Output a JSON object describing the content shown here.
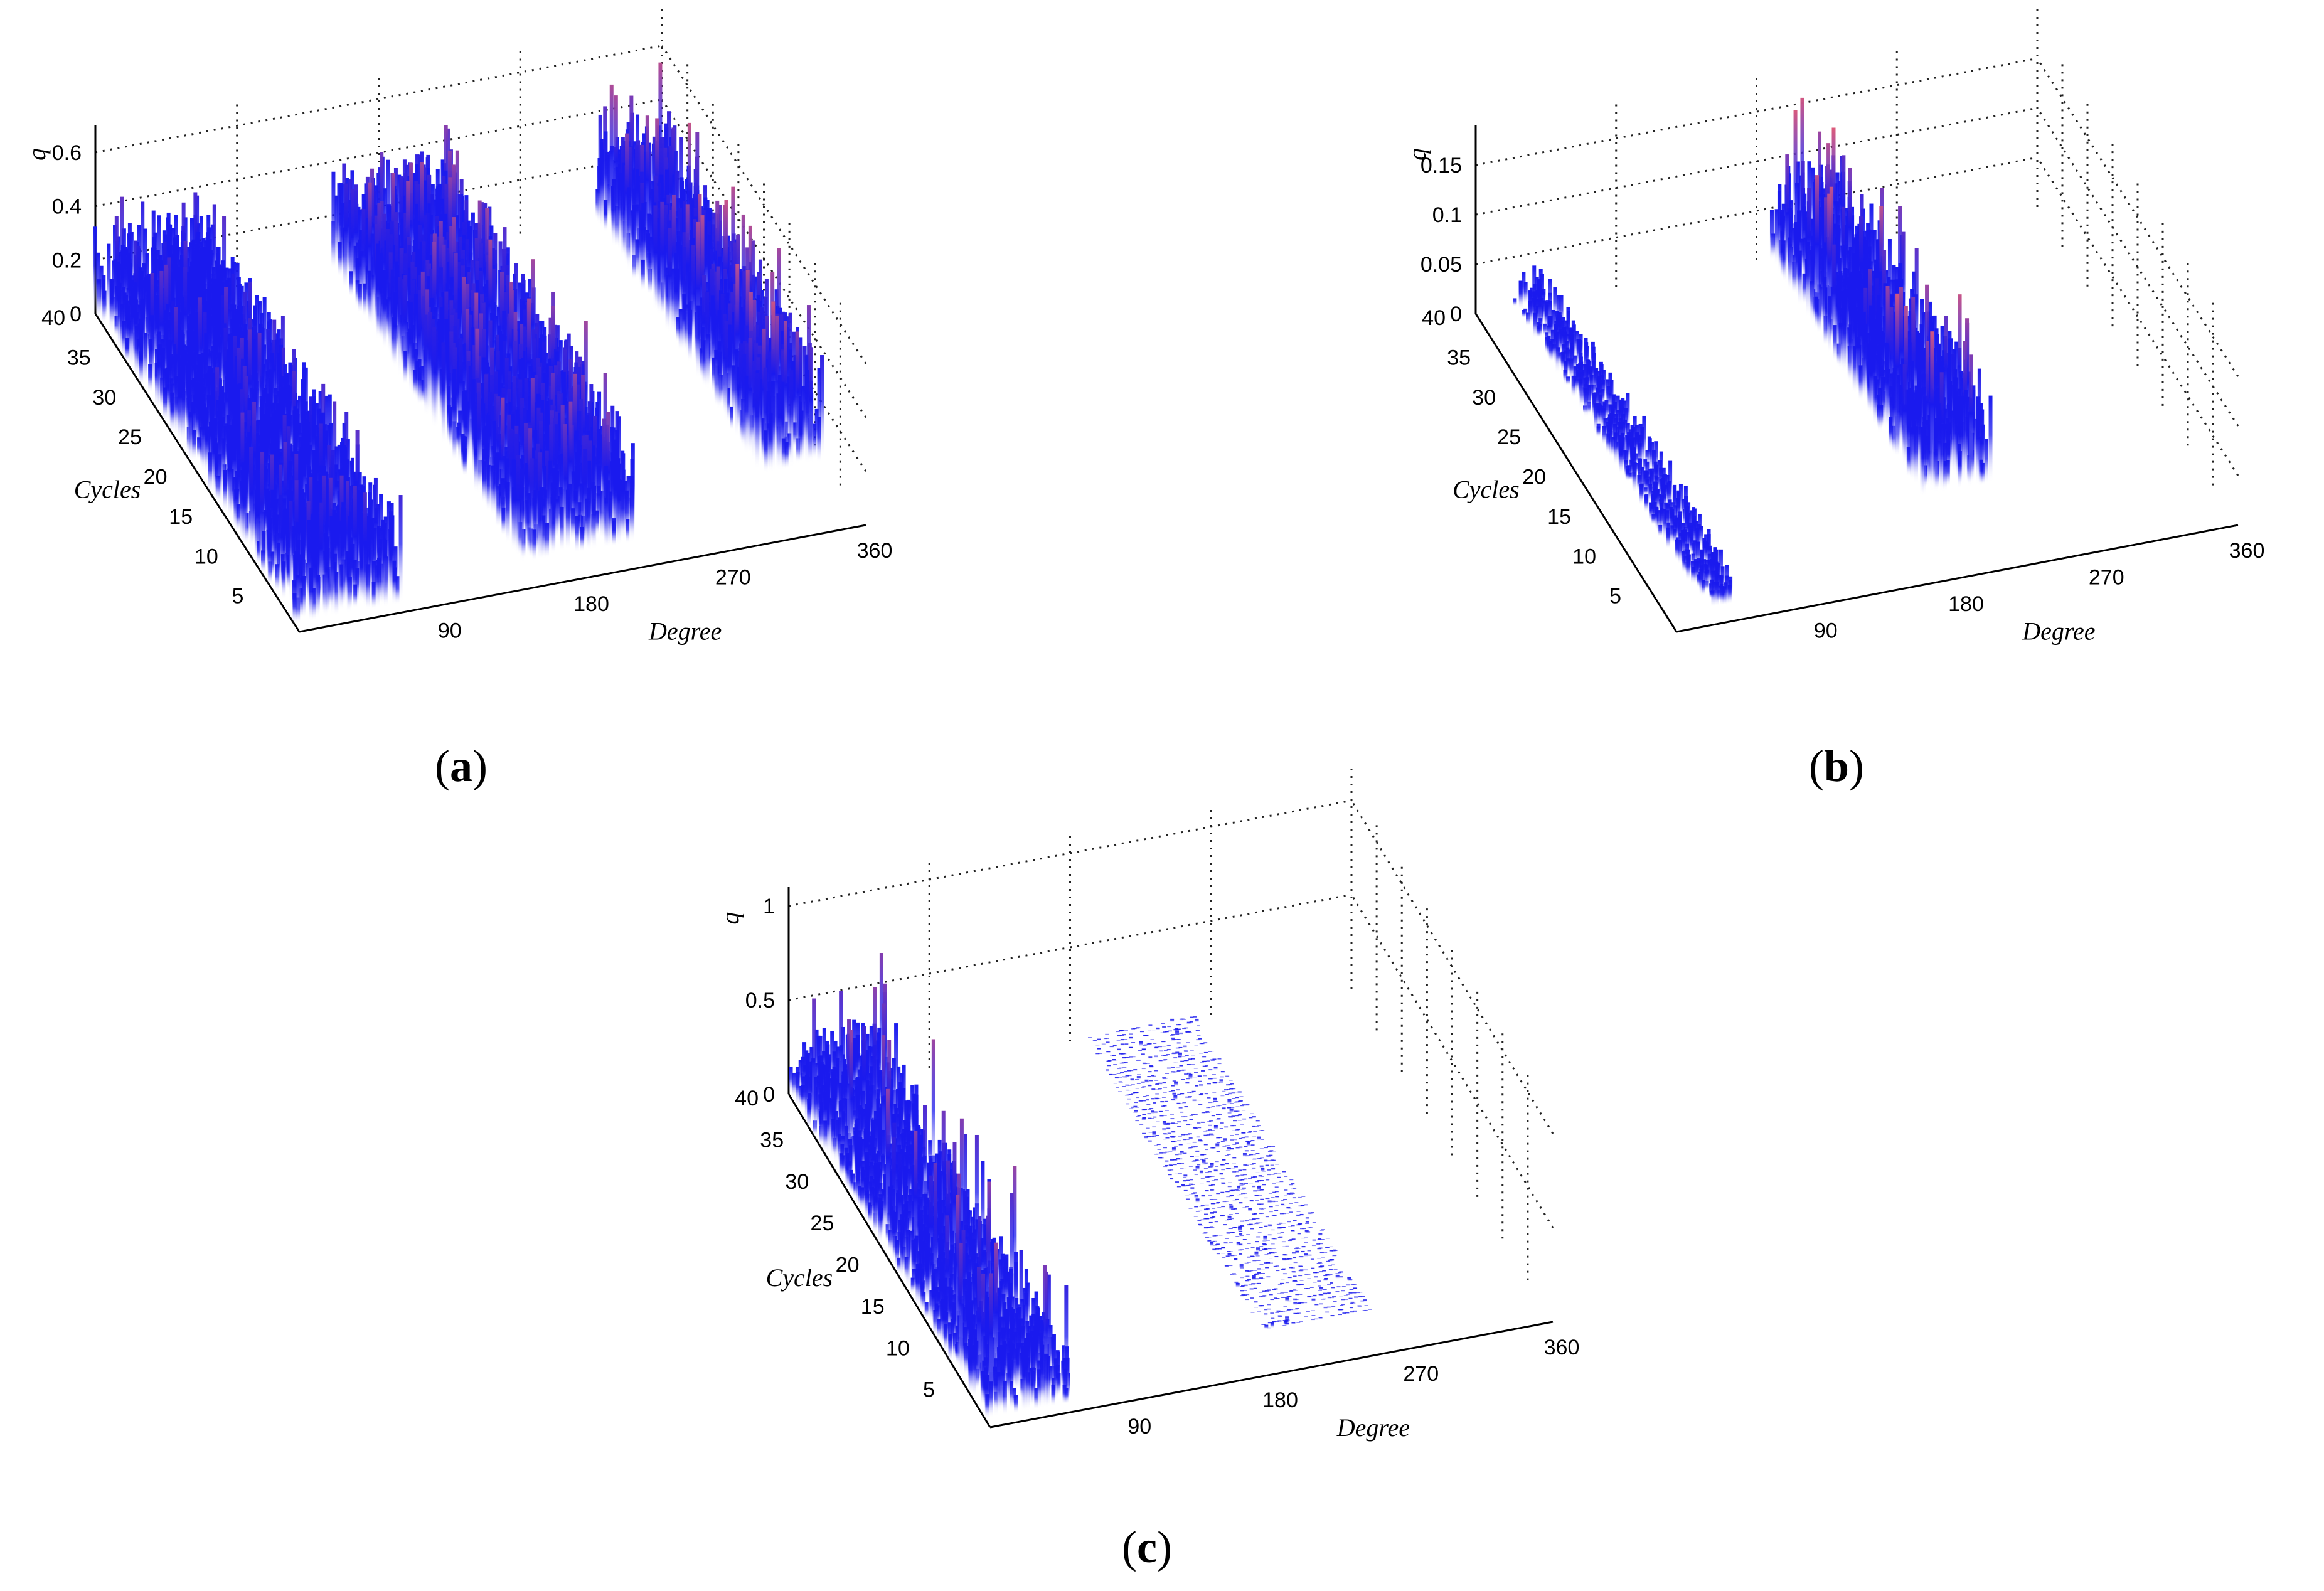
{
  "chart_data": [
    {
      "type": "3d-bar",
      "panel": "a",
      "caption": "a",
      "xlabel": "Degree",
      "ylabel": "Cycles",
      "zlabel": "q",
      "xlim": [
        0,
        360
      ],
      "ylim": [
        0,
        40
      ],
      "zlim": [
        0,
        0.7
      ],
      "x_ticks": [
        "90",
        "180",
        "270",
        "360"
      ],
      "y_ticks": [
        "5",
        "10",
        "15",
        "20",
        "25",
        "30",
        "35",
        "40"
      ],
      "z_ticks": [
        "0",
        "0.2",
        "0.4",
        "0.6"
      ],
      "bands": [
        {
          "phase_from": 0,
          "phase_to": 70,
          "cycles_from": 1,
          "cycles_to": 40,
          "typical_q": 0.3,
          "max_q": 0.45
        },
        {
          "phase_from": 150,
          "phase_to": 225,
          "cycles_from": 3,
          "cycles_to": 40,
          "typical_q": 0.35,
          "max_q": 0.55
        },
        {
          "phase_from": 318,
          "phase_to": 360,
          "cycles_from": 8,
          "cycles_to": 40,
          "typical_q": 0.35,
          "max_q": 0.6
        }
      ],
      "color_scale": {
        "low": "#ffffff",
        "mid": "#1a1aee",
        "high": "#ff6666"
      }
    },
    {
      "type": "3d-bar",
      "panel": "b",
      "caption": "b",
      "xlabel": "Degree",
      "ylabel": "Cycles",
      "zlabel": "q",
      "xlim": [
        0,
        360
      ],
      "ylim": [
        0,
        40
      ],
      "zlim": [
        0,
        0.19
      ],
      "x_ticks": [
        "90",
        "180",
        "270",
        "360"
      ],
      "y_ticks": [
        "5",
        "10",
        "15",
        "20",
        "25",
        "30",
        "35",
        "40"
      ],
      "z_ticks": [
        "0",
        "0.05",
        "0.1",
        "0.15"
      ],
      "bands": [
        {
          "phase_from": 25,
          "phase_to": 45,
          "cycles_from": 2,
          "cycles_to": 40,
          "typical_q": 0.03,
          "max_q": 0.05
        },
        {
          "phase_from": 188,
          "phase_to": 235,
          "cycles_from": 10,
          "cycles_to": 40,
          "typical_q": 0.08,
          "max_q": 0.17
        }
      ],
      "color_scale": {
        "low": "#ffffff",
        "mid": "#1a1aee",
        "high": "#ff6666"
      }
    },
    {
      "type": "3d-bar",
      "panel": "c",
      "caption": "c",
      "xlabel": "Degree",
      "ylabel": "Cycles",
      "zlabel": "q",
      "xlim": [
        0,
        360
      ],
      "ylim": [
        0,
        40
      ],
      "zlim": [
        0,
        1.1
      ],
      "x_ticks": [
        "90",
        "180",
        "270",
        "360"
      ],
      "y_ticks": [
        "5",
        "10",
        "15",
        "20",
        "25",
        "30",
        "35",
        "40"
      ],
      "z_ticks": [
        "0",
        "0.5",
        "1"
      ],
      "bands": [
        {
          "phase_from": 0,
          "phase_to": 55,
          "cycles_from": 1,
          "cycles_to": 40,
          "typical_q": 0.3,
          "max_q": 0.85
        },
        {
          "phase_from": 190,
          "phase_to": 260,
          "cycles_from": 5,
          "cycles_to": 40,
          "typical_q": 0.01,
          "max_q": 0.03
        }
      ],
      "color_scale": {
        "low": "#ffffff",
        "mid": "#1a1aee",
        "high": "#ff6666"
      }
    }
  ]
}
